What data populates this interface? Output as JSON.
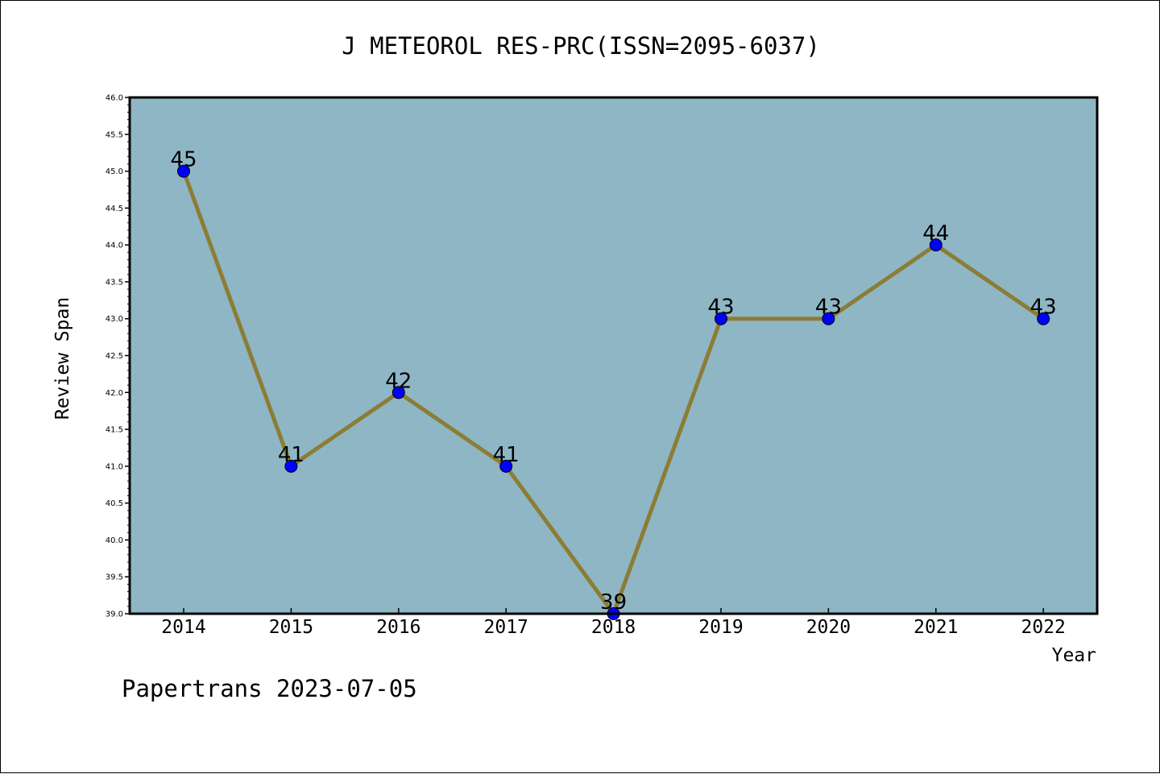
{
  "chart_data": {
    "type": "line",
    "title": "J METEOROL RES-PRC(ISSN=2095-6037)",
    "xlabel": "Year",
    "ylabel": "Review Span",
    "categories": [
      "2014",
      "2015",
      "2016",
      "2017",
      "2018",
      "2019",
      "2020",
      "2021",
      "2022"
    ],
    "series": [
      {
        "values": [
          45,
          41,
          42,
          41,
          39,
          43,
          43,
          44,
          43
        ]
      }
    ],
    "data_labels": [
      "45",
      "41",
      "42",
      "41",
      "39",
      "43",
      "43",
      "44",
      "43"
    ],
    "ylim": [
      39.0,
      46.0
    ],
    "yticks": [
      "39.0",
      "39.5",
      "40.0",
      "40.5",
      "41.0",
      "41.5",
      "42.0",
      "42.5",
      "43.0",
      "43.5",
      "44.0",
      "44.5",
      "45.0",
      "45.5",
      "46.0"
    ],
    "grid": false,
    "footer": "Papertrans 2023-07-05",
    "colors": {
      "plot_background": "#8fb6c5",
      "line": "#8b7d35",
      "marker": "#0000ff"
    }
  }
}
